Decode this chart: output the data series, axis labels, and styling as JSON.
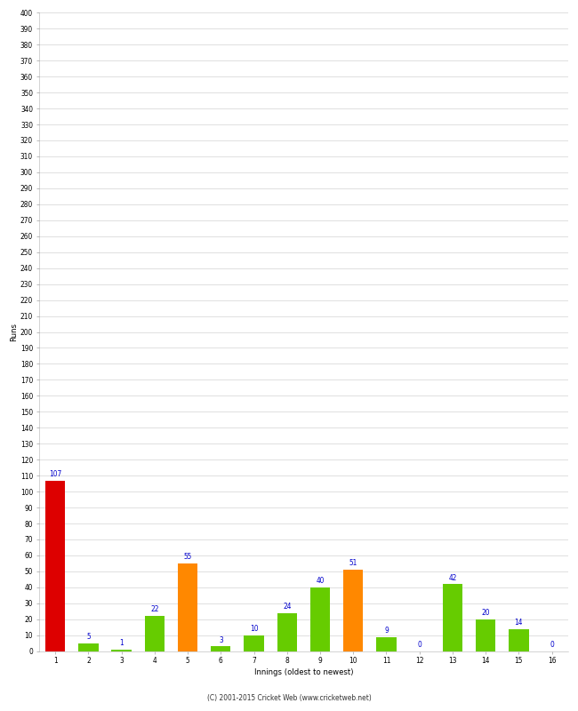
{
  "innings": [
    1,
    2,
    3,
    4,
    5,
    6,
    7,
    8,
    9,
    10,
    11,
    12,
    13,
    14,
    15,
    16
  ],
  "runs": [
    107,
    5,
    1,
    22,
    55,
    3,
    10,
    24,
    40,
    51,
    9,
    0,
    42,
    20,
    14,
    0
  ],
  "colors": [
    "#dd0000",
    "#66cc00",
    "#66cc00",
    "#66cc00",
    "#ff8800",
    "#66cc00",
    "#66cc00",
    "#66cc00",
    "#66cc00",
    "#ff8800",
    "#66cc00",
    "#66cc00",
    "#66cc00",
    "#66cc00",
    "#66cc00",
    "#66cc00"
  ],
  "xlabel": "Innings (oldest to newest)",
  "ylabel": "Runs",
  "ylim": [
    0,
    400
  ],
  "ytick_step": 10,
  "footer": "(C) 2001-2015 Cricket Web (www.cricketweb.net)",
  "label_color": "#0000cc",
  "bg_color": "#ffffff",
  "plot_bg_color": "#ffffff",
  "grid_color": "#cccccc",
  "tick_label_color": "#000000",
  "bar_width": 0.6
}
